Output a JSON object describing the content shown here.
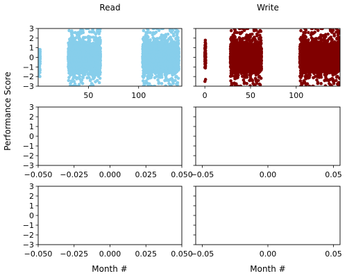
{
  "figure": {
    "ylabel_shared": "Performance Score",
    "xlabel_left": "Month #",
    "xlabel_right": "Month #"
  },
  "chart_data": [
    {
      "id": "read-top",
      "type": "scatter",
      "title": "Read",
      "xlim": [
        0,
        143
      ],
      "ylim": [
        -3,
        3
      ],
      "xticks": [
        50,
        100
      ],
      "yticks": [
        -3,
        -2,
        -1,
        0,
        1,
        2,
        3
      ],
      "color": "#87CEEB",
      "clusters": [
        {
          "x": [
            0,
            2
          ],
          "y": [
            -2.0,
            0.8
          ]
        },
        {
          "x": [
            30,
            62
          ],
          "y": [
            -3.0,
            3.0
          ]
        },
        {
          "x": [
            104,
            140
          ],
          "y": [
            -3.0,
            3.0
          ]
        }
      ]
    },
    {
      "id": "write-top",
      "type": "scatter",
      "title": "Write",
      "xlim": [
        -10,
        148
      ],
      "ylim": [
        -3,
        3
      ],
      "xticks": [
        0,
        50,
        100
      ],
      "yticks": [
        -3,
        -2,
        -1,
        0,
        1,
        2,
        3
      ],
      "color": "#800000",
      "clusters": [
        {
          "x": [
            0,
            1
          ],
          "y": [
            -2.5,
            2.2
          ]
        },
        {
          "x": [
            28,
            62
          ],
          "y": [
            -3.0,
            3.0
          ]
        },
        {
          "x": [
            104,
            148
          ],
          "y": [
            -3.0,
            3.0
          ]
        }
      ]
    },
    {
      "id": "left-middle",
      "type": "scatter",
      "xlim": [
        -0.05,
        0.05
      ],
      "ylim": [
        -3,
        3
      ],
      "xticks": [
        "-0.050",
        "-0.025",
        "0.000",
        "0.025",
        "0.050"
      ],
      "yticks": [
        -3,
        -2,
        -1,
        0,
        1,
        2,
        3
      ]
    },
    {
      "id": "right-middle",
      "type": "scatter",
      "xlim": [
        -0.055,
        0.055
      ],
      "ylim": [
        -3,
        3
      ],
      "xticks": [
        "-0.05",
        "0.00",
        "0.05"
      ],
      "yticks": [
        -3,
        -2,
        -1,
        0,
        1,
        2,
        3
      ]
    },
    {
      "id": "left-bottom",
      "type": "scatter",
      "xlim": [
        -0.05,
        0.05
      ],
      "ylim": [
        -3,
        3
      ],
      "xticks": [
        "-0.050",
        "-0.025",
        "0.000",
        "0.025",
        "0.050"
      ],
      "yticks": [
        -3,
        -2,
        -1,
        0,
        1,
        2,
        3
      ]
    },
    {
      "id": "right-bottom",
      "type": "scatter",
      "xlim": [
        -0.055,
        0.055
      ],
      "ylim": [
        -3,
        3
      ],
      "xticks": [
        "-0.05",
        "0.00",
        "0.05"
      ],
      "yticks": [
        -3,
        -2,
        -1,
        0,
        1,
        2,
        3
      ]
    }
  ]
}
